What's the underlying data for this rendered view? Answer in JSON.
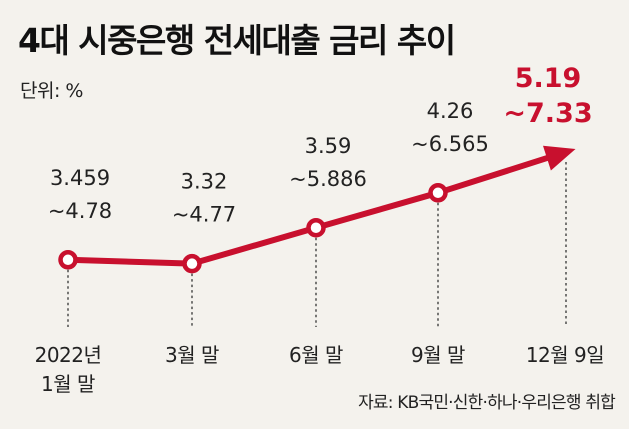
{
  "title": "4대 시중은행 전세대출 금리 추이",
  "unit_label": "단위: %",
  "source": "자료: KB국민·신한·하나·우리은행 취합",
  "colors": {
    "line": "#c8102e",
    "highlight_text": "#c8102e",
    "background": "#f4f2ed"
  },
  "chart_data": {
    "type": "line",
    "title": "4대 시중은행 전세대출 금리 추이",
    "unit": "%",
    "categories": [
      [
        "2022년",
        "1월 말"
      ],
      [
        "3월 말"
      ],
      [
        "6월 말"
      ],
      [
        "9월 말"
      ],
      [
        "12월 9일"
      ]
    ],
    "series": [
      {
        "low": [
          3.459,
          3.32,
          3.59,
          4.26,
          5.19
        ],
        "high": [
          4.78,
          4.77,
          5.886,
          6.565,
          7.33
        ]
      }
    ],
    "value_labels": [
      [
        "3.459",
        "~4.78"
      ],
      [
        "3.32",
        "~4.77"
      ],
      [
        "3.59",
        "~5.886"
      ],
      [
        "4.26",
        "~6.565"
      ],
      [
        "5.19",
        "~7.33"
      ]
    ],
    "highlight_index": 4,
    "last_point_arrow": true
  }
}
